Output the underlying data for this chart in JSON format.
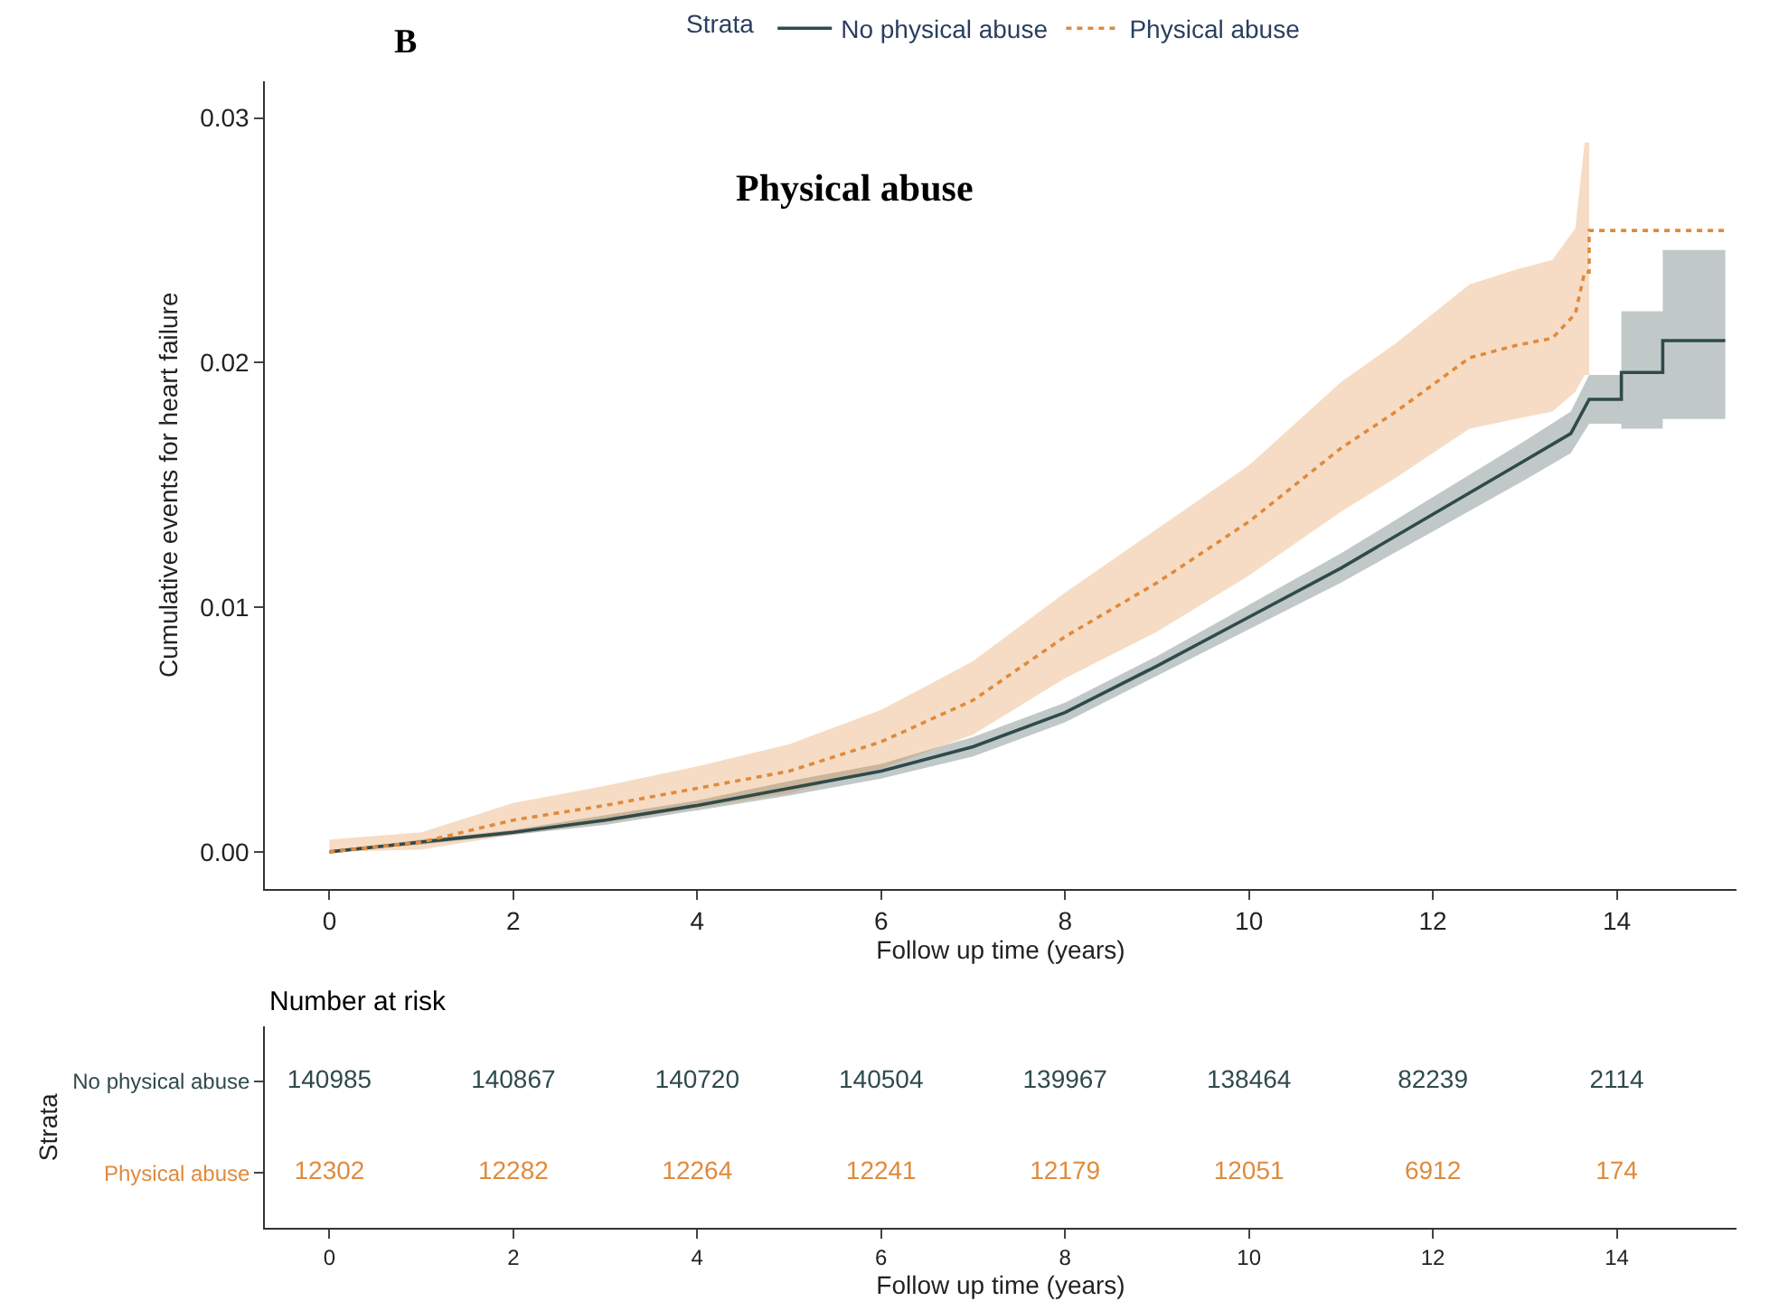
{
  "chart_data": [
    {
      "type": "line",
      "title": "Physical abuse",
      "annotations": [
        "B"
      ],
      "xlabel": "Follow up time (years)",
      "ylabel": "Cumulative events for heart failure",
      "legend_title": "Strata",
      "legend": "top",
      "xlim": [
        -0.7,
        15.3
      ],
      "xticks": [
        0,
        2,
        4,
        6,
        8,
        10,
        12,
        14
      ],
      "ylim": [
        -0.0015,
        0.0315
      ],
      "yticks": [
        {
          "value": 0,
          "label": "0.00"
        },
        0.01,
        0.02,
        0.03
      ],
      "series": [
        {
          "name": "No physical abuse",
          "color": "#2f4a4a",
          "line_style": "solid",
          "x": [
            0,
            1,
            2,
            3,
            4,
            5,
            6,
            7,
            8,
            9,
            10,
            11,
            12,
            13,
            13.5,
            13.7,
            14.05,
            14.05,
            14.5,
            14.5,
            15.18
          ],
          "values": [
            0,
            0.0004,
            0.0008,
            0.0013,
            0.0019,
            0.0026,
            0.0033,
            0.0043,
            0.0057,
            0.0076,
            0.0096,
            0.0116,
            0.0138,
            0.016,
            0.0171,
            0.0185,
            0.0185,
            0.0196,
            0.0196,
            0.0209,
            0.0209
          ],
          "lower": [
            0,
            0.0003,
            0.0007,
            0.0011,
            0.0017,
            0.0023,
            0.003,
            0.0039,
            0.0053,
            0.0072,
            0.0091,
            0.011,
            0.0131,
            0.0152,
            0.0163,
            0.0175,
            0.0175,
            0.0173,
            0.0173,
            0.0177,
            0.0177
          ],
          "upper": [
            0,
            0.0005,
            0.0009,
            0.0015,
            0.0021,
            0.0029,
            0.0036,
            0.0047,
            0.0061,
            0.008,
            0.0101,
            0.0122,
            0.0145,
            0.0168,
            0.018,
            0.0195,
            0.0195,
            0.0221,
            0.0221,
            0.0246,
            0.0246
          ]
        },
        {
          "name": "Physical abuse",
          "color": "#e08a3c",
          "line_style": "dotted",
          "x": [
            0,
            1,
            2,
            3,
            4,
            5,
            6,
            7,
            8,
            9,
            10,
            11,
            11.6,
            12.4,
            12.9,
            13.3,
            13.55,
            13.65,
            13.7,
            13.7,
            15.18
          ],
          "values": [
            0,
            0.0004,
            0.0013,
            0.0019,
            0.0026,
            0.0033,
            0.0045,
            0.0062,
            0.0088,
            0.011,
            0.0135,
            0.0165,
            0.018,
            0.0202,
            0.0207,
            0.021,
            0.022,
            0.0237,
            0.0237,
            0.0254,
            0.0254
          ],
          "lower": [
            0,
            0.0001,
            0.0007,
            0.0012,
            0.0018,
            0.0024,
            0.0034,
            0.0048,
            0.0071,
            0.009,
            0.0113,
            0.0139,
            0.0153,
            0.0173,
            0.0177,
            0.018,
            0.0188,
            0.0195,
            0.0195,
            null,
            null
          ],
          "upper": [
            0.0005,
            0.0008,
            0.002,
            0.0027,
            0.0035,
            0.0044,
            0.0058,
            0.0078,
            0.0106,
            0.0132,
            0.0158,
            0.0192,
            0.0208,
            0.0232,
            0.0238,
            0.0242,
            0.0255,
            0.029,
            0.029,
            null,
            null
          ]
        }
      ]
    },
    {
      "type": "heatmap",
      "title": "Number at risk",
      "xlabel": "Follow up time (years)",
      "ylabel": "Strata",
      "xlim": [
        -0.7,
        15.3
      ],
      "xticks": [
        0,
        2,
        4,
        6,
        8,
        10,
        12,
        14
      ],
      "data_labels": true,
      "x": [
        0,
        2,
        4,
        6,
        8,
        10,
        12,
        14
      ],
      "y_categories": [
        "No physical abuse",
        "Physical abuse"
      ],
      "colors": [
        "#2f4a4a",
        "#e08a3c"
      ],
      "cells": [
        [
          140985,
          140867,
          140720,
          140504,
          139967,
          138464,
          82239,
          2114
        ],
        [
          12302,
          12282,
          12264,
          12241,
          12179,
          12051,
          6912,
          174
        ]
      ]
    }
  ]
}
